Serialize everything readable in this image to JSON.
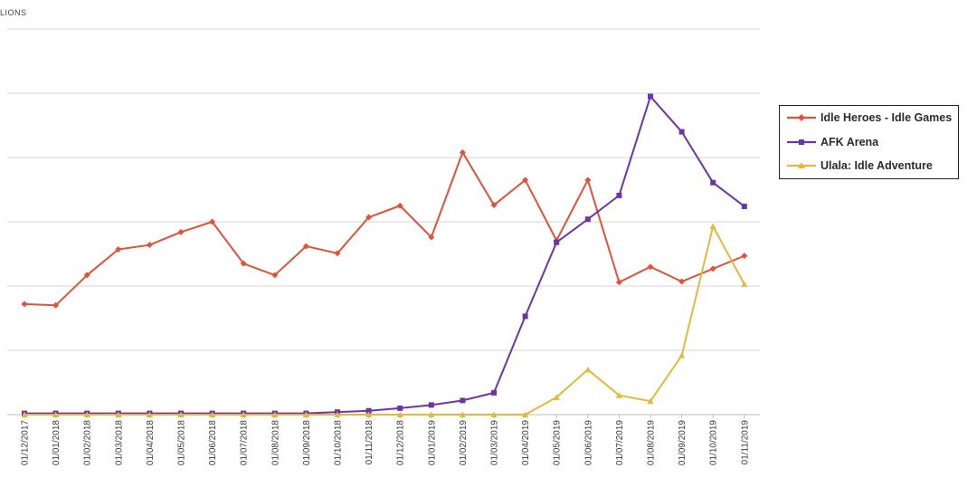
{
  "unit_label": "LIONS",
  "chart_data": {
    "type": "line",
    "title": "",
    "xlabel": "",
    "ylabel": "LIONS",
    "ylim": [
      0,
      6
    ],
    "gridlines": [
      1,
      2,
      3,
      4,
      5,
      6
    ],
    "categories": [
      "01/12/2017",
      "01/01/2018",
      "01/02/2018",
      "01/03/2018",
      "01/04/2018",
      "01/05/2018",
      "01/06/2018",
      "01/07/2018",
      "01/08/2018",
      "01/09/2018",
      "01/10/2018",
      "01/11/2018",
      "01/12/2018",
      "01/01/2019",
      "01/02/2019",
      "01/03/2019",
      "01/04/2019",
      "01/05/2019",
      "01/06/2019",
      "01/07/2019",
      "01/08/2019",
      "01/09/2019",
      "01/10/2019",
      "01/11/2019"
    ],
    "series": [
      {
        "name": "Idle Heroes - Idle Games",
        "color": "#e0523a",
        "marker": "diamond",
        "values": [
          1.72,
          1.7,
          2.17,
          2.57,
          2.64,
          2.84,
          3.0,
          2.35,
          2.17,
          2.62,
          2.51,
          3.07,
          3.25,
          2.76,
          4.08,
          3.26,
          3.65,
          2.71,
          3.65,
          2.06,
          2.3,
          2.07,
          2.27,
          2.47
        ]
      },
      {
        "name": "AFK Arena",
        "color": "#6b35a8",
        "marker": "square",
        "values": [
          0.02,
          0.02,
          0.02,
          0.02,
          0.02,
          0.02,
          0.02,
          0.02,
          0.02,
          0.02,
          0.04,
          0.06,
          0.1,
          0.15,
          0.22,
          0.34,
          1.53,
          2.68,
          3.04,
          3.41,
          4.95,
          4.4,
          3.61,
          3.24
        ]
      },
      {
        "name": "Ulala: Idle Adventure",
        "color": "#e6b83a",
        "marker": "triangle",
        "values": [
          0,
          0,
          0,
          0,
          0,
          0,
          0,
          0,
          0,
          0,
          0,
          0,
          0,
          0,
          0,
          0,
          0,
          0.27,
          0.7,
          0.3,
          0.21,
          0.92,
          2.93,
          2.03
        ]
      }
    ],
    "legend_position": "right"
  }
}
